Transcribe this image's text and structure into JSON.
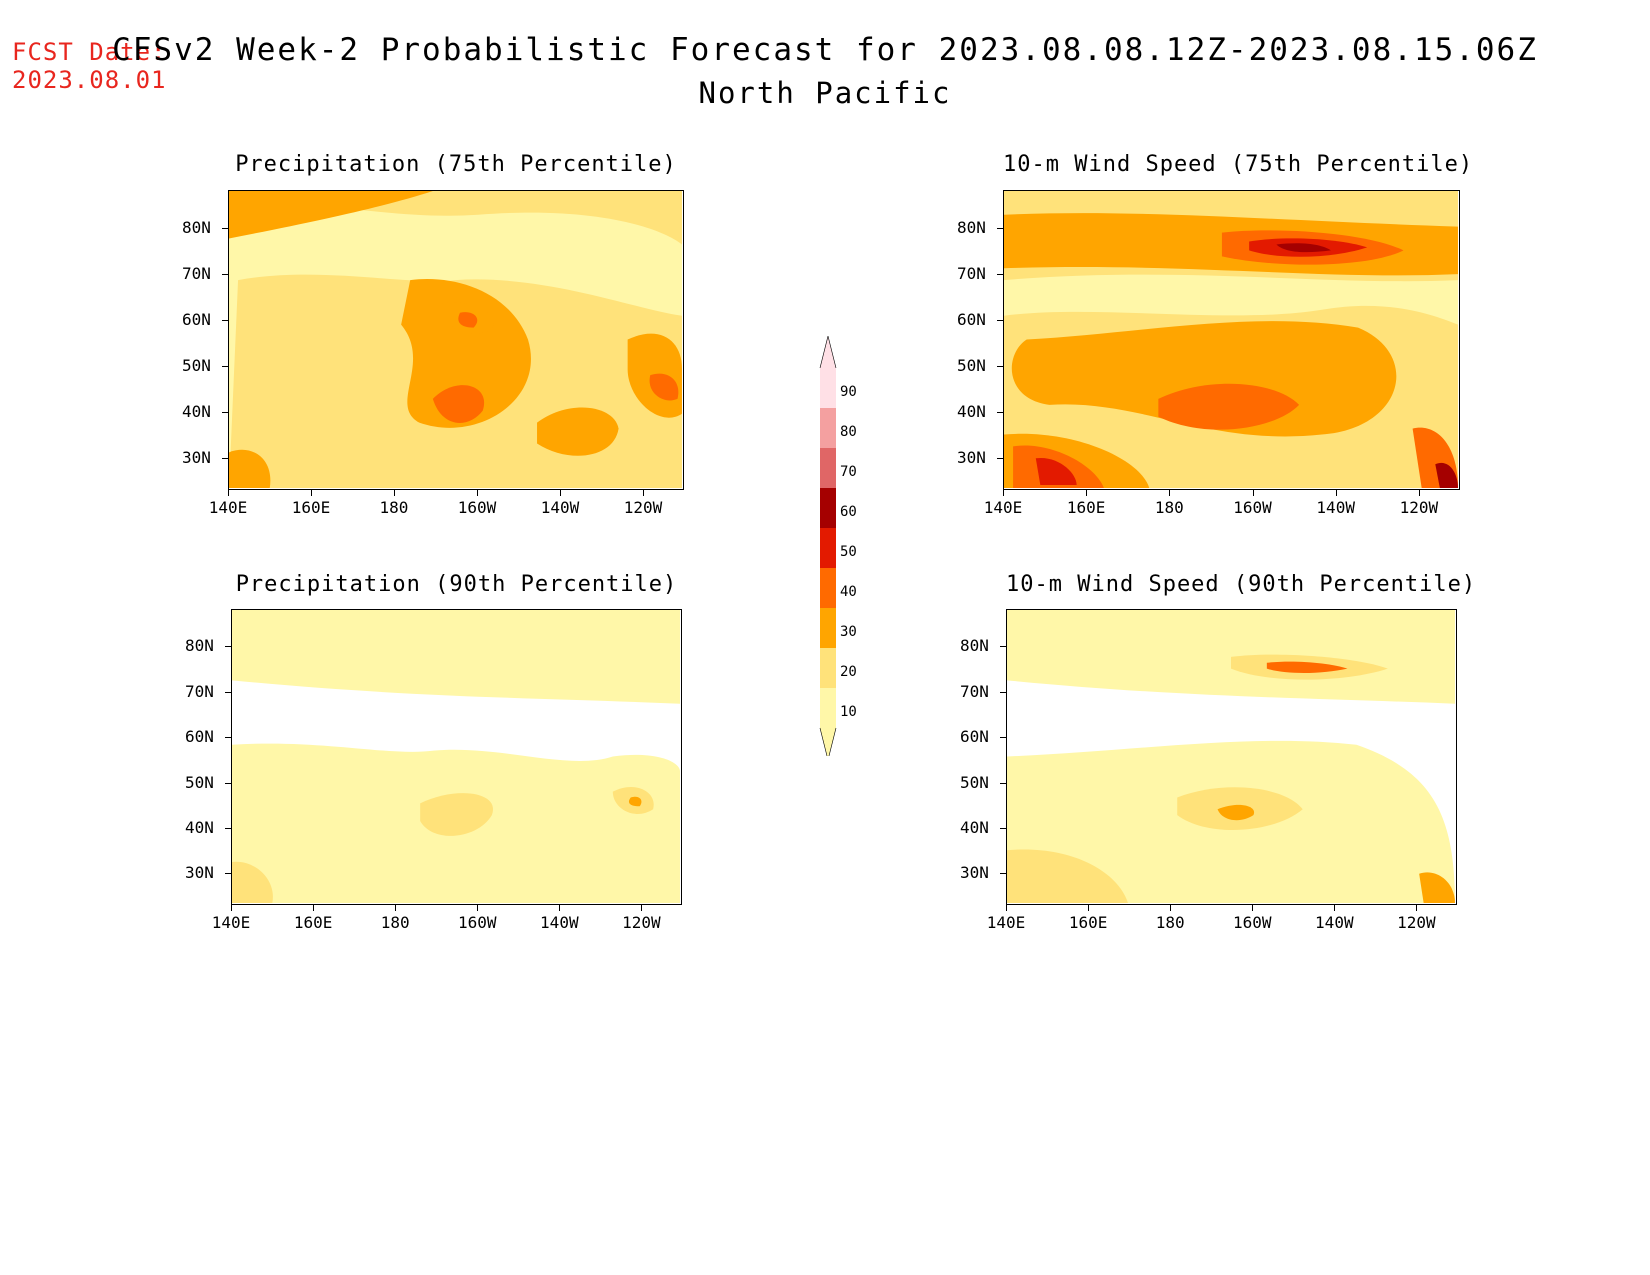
{
  "header": {
    "fcst_date_label": "FCST Date:",
    "fcst_date_value": "2023.08.01",
    "title": "CFSv2 Week-2 Probabilistic Forecast for 2023.08.08.12Z-2023.08.15.06Z",
    "subtitle": "North Pacific"
  },
  "axes": {
    "lat_labels": [
      "80N",
      "70N",
      "60N",
      "50N",
      "40N",
      "30N"
    ],
    "lon_labels": [
      "140E",
      "160E",
      "180",
      "160W",
      "140W",
      "120W"
    ]
  },
  "panels": [
    {
      "id": "precip75",
      "title": "Precipitation (75th Percentile)",
      "variable": "precipitation",
      "percentile": 75
    },
    {
      "id": "wind75",
      "title": "10-m Wind Speed (75th Percentile)",
      "variable": "10-m wind speed",
      "percentile": 75
    },
    {
      "id": "precip90",
      "title": "Precipitation (90th Percentile)",
      "variable": "precipitation",
      "percentile": 90
    },
    {
      "id": "wind90",
      "title": "10-m Wind Speed (90th Percentile)",
      "variable": "10-m wind speed",
      "percentile": 90
    }
  ],
  "colorbar": {
    "levels": [
      "90",
      "80",
      "70",
      "60",
      "50",
      "40",
      "30",
      "20",
      "10"
    ],
    "colors": {
      "c10": "#fff7a8",
      "c20": "#ffe27a",
      "c30": "#ffa500",
      "c40": "#ff6a00",
      "c50": "#e31a00",
      "c60": "#a50000",
      "c70": "#e06666",
      "c80": "#f4a0a0",
      "c90": "#ffe0e6"
    }
  }
}
